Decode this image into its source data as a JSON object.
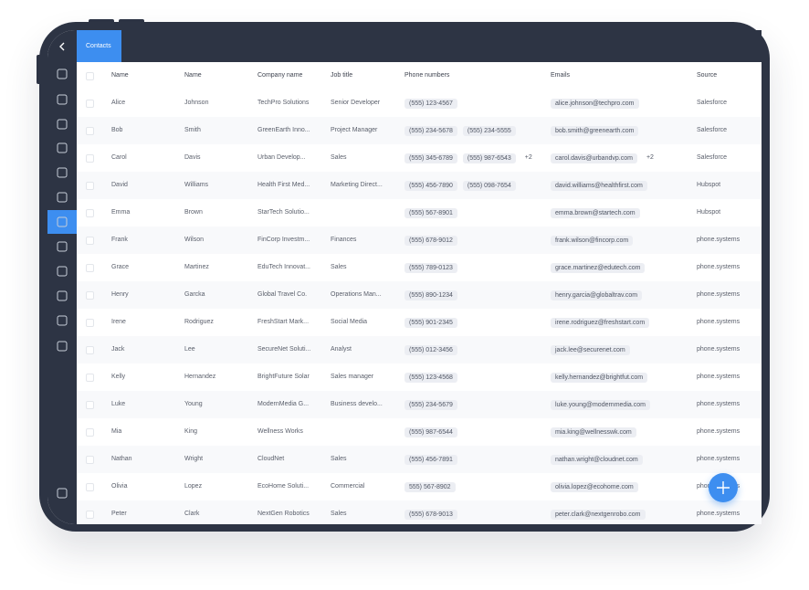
{
  "tab": "Contacts",
  "table": {
    "headers": [
      "Name",
      "Name",
      "Company name",
      "Job title",
      "Phone numbers",
      "Emails",
      "Source"
    ],
    "rows": [
      {
        "first": "Alice",
        "last": "Johnson",
        "company": "TechPro Solutions",
        "job": "Senior Developer",
        "phones": [
          "(555) 123-4567"
        ],
        "emails": [
          "alice.johnson@techpro.com"
        ],
        "source": "Salesforce"
      },
      {
        "first": "Bob",
        "last": "Smith",
        "company": "GreenEarth Inno...",
        "job": "Project Manager",
        "phones": [
          "(555) 234-5678",
          "(555) 234-5555"
        ],
        "emails": [
          "bob.smith@greenearth.com"
        ],
        "source": "Salesforce"
      },
      {
        "first": "Carol",
        "last": "Davis",
        "company": "Urban Develop...",
        "job": "Sales",
        "phones": [
          "(555) 345-6789",
          "(555) 987-6543"
        ],
        "phones_more": "+2",
        "emails": [
          "carol.davis@urbandvp.com"
        ],
        "emails_more": "+2",
        "source": "Salesforce"
      },
      {
        "first": "David",
        "last": "Williams",
        "company": "Health First Med...",
        "job": "Marketing Direct...",
        "phones": [
          "(555) 456-7890",
          "(555) 098-7654"
        ],
        "emails": [
          "david.williams@healthfirst.com"
        ],
        "source": "Hubspot"
      },
      {
        "first": "Emma",
        "last": "Brown",
        "company": "StarTech Solutio...",
        "job": null,
        "phones": [
          "(555) 567-8901"
        ],
        "emails": [
          "emma.brown@startech.com"
        ],
        "source": "Hubspot"
      },
      {
        "first": "Frank",
        "last": "Wilson",
        "company": "FinCorp Investm...",
        "job": "Finances",
        "phones": [
          "(555) 678-9012"
        ],
        "emails": [
          "frank.wilson@fincorp.com"
        ],
        "source": "phone.systems"
      },
      {
        "first": "Grace",
        "last": "Martinez",
        "company": "EduTech Innovat...",
        "job": "Sales",
        "phones": [
          "(555) 789-0123"
        ],
        "emails": [
          "grace.martinez@edutech.com"
        ],
        "source": "phone.systems"
      },
      {
        "first": "Henry",
        "last": "Garcka",
        "company": "Global Travel Co.",
        "job": "Operations Man...",
        "phones": [
          "(555) 890-1234"
        ],
        "emails": [
          "henry.garcia@globaltrav.com"
        ],
        "source": "phone.systems"
      },
      {
        "first": "Irene",
        "last": "Rodriguez",
        "company": "FreshStart Mark...",
        "job": "Social Media",
        "phones": [
          "(555) 901-2345"
        ],
        "emails": [
          "irene.rodriguez@freshstart.com"
        ],
        "source": "phone.systems"
      },
      {
        "first": "Jack",
        "last": "Lee",
        "company": "SecureNet Soluti...",
        "job": "Analyst",
        "phones": [
          "(555) 012-3456"
        ],
        "emails": [
          "jack.lee@securenet.com"
        ],
        "source": "phone.systems"
      },
      {
        "first": "Kelly",
        "last": "Hernandez",
        "company": "BrightFuture Solar",
        "job": "Sales manager",
        "phones": [
          "(555) 123-4568"
        ],
        "emails": [
          "kelly.hernandez@brightfut.com"
        ],
        "source": "phone.systems"
      },
      {
        "first": "Luke",
        "last": "Young",
        "company": "ModernMedia G...",
        "job": "Business develo...",
        "phones": [
          "(555) 234-5679"
        ],
        "emails": [
          "luke.young@modernmedia.com"
        ],
        "source": "phone.systems"
      },
      {
        "first": "Mia",
        "last": "King",
        "company": "Wellness Works",
        "job": null,
        "phones": [
          "(555) 987-6544"
        ],
        "emails": [
          "mia.king@wellnesswk.com"
        ],
        "source": "phone.systems"
      },
      {
        "first": "Nathan",
        "last": "Wright",
        "company": "CloudNet",
        "job": "Sales",
        "phones": [
          "(555) 456-7891"
        ],
        "emails": [
          "nathan.wright@cloudnet.com"
        ],
        "source": "phone.systems"
      },
      {
        "first": "Olivia",
        "last": "Lopez",
        "company": "EcoHome Soluti...",
        "job": "Commercial",
        "phones": [
          "555) 567-8902"
        ],
        "emails": [
          "olivia.lopez@ecohome.com"
        ],
        "source": "phone.systems"
      },
      {
        "first": "Peter",
        "last": "Clark",
        "company": "NextGen Robotics",
        "job": "Sales",
        "phones": [
          "(555) 678-9013"
        ],
        "emails": [
          "peter.clark@nextgenrobo.com"
        ],
        "source": "phone.systems"
      }
    ]
  }
}
